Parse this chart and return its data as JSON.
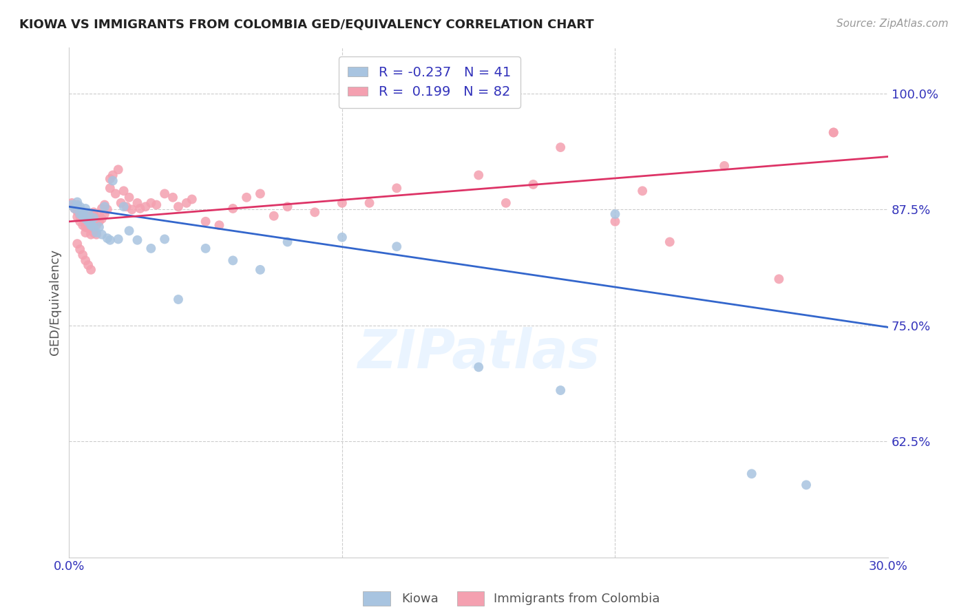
{
  "title": "KIOWA VS IMMIGRANTS FROM COLOMBIA GED/EQUIVALENCY CORRELATION CHART",
  "source": "Source: ZipAtlas.com",
  "ylabel": "GED/Equivalency",
  "ytick_labels": [
    "62.5%",
    "75.0%",
    "87.5%",
    "100.0%"
  ],
  "ytick_values": [
    0.625,
    0.75,
    0.875,
    1.0
  ],
  "xlim": [
    0.0,
    0.3
  ],
  "ylim": [
    0.5,
    1.05
  ],
  "legend_r_kiowa": "-0.237",
  "legend_n_kiowa": "41",
  "legend_r_colombia": "0.199",
  "legend_n_colombia": "82",
  "kiowa_color": "#a8c4e0",
  "colombia_color": "#f4a0b0",
  "kiowa_line_color": "#3366cc",
  "colombia_line_color": "#dd3366",
  "background_color": "#ffffff",
  "watermark": "ZIPatlas",
  "kiowa_trend": [
    0.878,
    0.748
  ],
  "colombia_trend": [
    0.862,
    0.932
  ],
  "kiowa_x": [
    0.001,
    0.002,
    0.003,
    0.003,
    0.004,
    0.004,
    0.005,
    0.005,
    0.006,
    0.006,
    0.007,
    0.007,
    0.008,
    0.008,
    0.009,
    0.009,
    0.01,
    0.011,
    0.012,
    0.013,
    0.014,
    0.015,
    0.016,
    0.018,
    0.02,
    0.022,
    0.025,
    0.03,
    0.035,
    0.04,
    0.05,
    0.06,
    0.07,
    0.08,
    0.1,
    0.12,
    0.15,
    0.18,
    0.2,
    0.25,
    0.27
  ],
  "kiowa_y": [
    0.88,
    0.876,
    0.879,
    0.883,
    0.87,
    0.878,
    0.872,
    0.868,
    0.865,
    0.876,
    0.862,
    0.871,
    0.86,
    0.858,
    0.856,
    0.866,
    0.85,
    0.856,
    0.848,
    0.878,
    0.844,
    0.842,
    0.906,
    0.843,
    0.878,
    0.852,
    0.842,
    0.833,
    0.843,
    0.778,
    0.833,
    0.82,
    0.81,
    0.84,
    0.845,
    0.835,
    0.705,
    0.68,
    0.87,
    0.59,
    0.578
  ],
  "colombia_x": [
    0.001,
    0.002,
    0.002,
    0.003,
    0.003,
    0.003,
    0.004,
    0.004,
    0.004,
    0.005,
    0.005,
    0.005,
    0.006,
    0.006,
    0.006,
    0.007,
    0.007,
    0.007,
    0.008,
    0.008,
    0.008,
    0.009,
    0.009,
    0.009,
    0.01,
    0.01,
    0.01,
    0.011,
    0.011,
    0.012,
    0.012,
    0.013,
    0.013,
    0.014,
    0.015,
    0.015,
    0.016,
    0.017,
    0.018,
    0.019,
    0.02,
    0.021,
    0.022,
    0.023,
    0.025,
    0.026,
    0.028,
    0.03,
    0.032,
    0.035,
    0.038,
    0.04,
    0.043,
    0.045,
    0.05,
    0.055,
    0.06,
    0.065,
    0.07,
    0.075,
    0.08,
    0.09,
    0.1,
    0.11,
    0.12,
    0.15,
    0.16,
    0.17,
    0.18,
    0.2,
    0.21,
    0.22,
    0.24,
    0.26,
    0.28,
    0.003,
    0.004,
    0.005,
    0.006,
    0.007,
    0.008,
    0.28
  ],
  "colombia_y": [
    0.882,
    0.879,
    0.876,
    0.88,
    0.873,
    0.867,
    0.874,
    0.868,
    0.862,
    0.872,
    0.865,
    0.858,
    0.862,
    0.856,
    0.85,
    0.87,
    0.862,
    0.855,
    0.87,
    0.858,
    0.848,
    0.872,
    0.86,
    0.85,
    0.866,
    0.858,
    0.848,
    0.87,
    0.862,
    0.876,
    0.865,
    0.88,
    0.87,
    0.875,
    0.908,
    0.898,
    0.912,
    0.892,
    0.918,
    0.882,
    0.895,
    0.878,
    0.888,
    0.875,
    0.882,
    0.876,
    0.878,
    0.882,
    0.88,
    0.892,
    0.888,
    0.878,
    0.882,
    0.886,
    0.862,
    0.858,
    0.876,
    0.888,
    0.892,
    0.868,
    0.878,
    0.872,
    0.882,
    0.882,
    0.898,
    0.912,
    0.882,
    0.902,
    0.942,
    0.862,
    0.895,
    0.84,
    0.922,
    0.8,
    0.958,
    0.838,
    0.832,
    0.826,
    0.82,
    0.815,
    0.81,
    0.958
  ]
}
